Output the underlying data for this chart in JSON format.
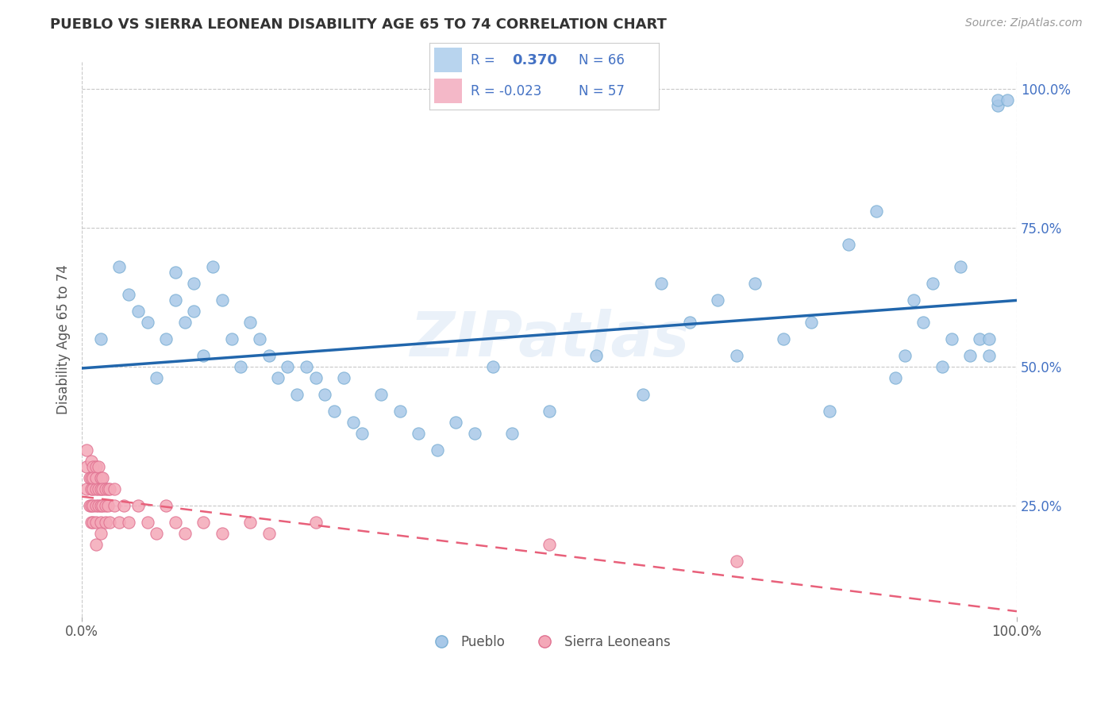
{
  "title": "PUEBLO VS SIERRA LEONEAN DISABILITY AGE 65 TO 74 CORRELATION CHART",
  "source": "Source: ZipAtlas.com",
  "ylabel": "Disability Age 65 to 74",
  "xlim": [
    0.0,
    1.0
  ],
  "ylim": [
    0.05,
    1.05
  ],
  "xtick_positions": [
    0.0,
    1.0
  ],
  "xtick_labels": [
    "0.0%",
    "100.0%"
  ],
  "ytick_positions": [
    0.25,
    0.5,
    0.75,
    1.0
  ],
  "ytick_labels": [
    "25.0%",
    "50.0%",
    "75.0%",
    "100.0%"
  ],
  "pueblo_color": "#a8c8e8",
  "pueblo_edge_color": "#7bafd4",
  "sierra_color": "#f4a8b8",
  "sierra_edge_color": "#e07090",
  "pueblo_line_color": "#2166ac",
  "sierra_line_color": "#e8607a",
  "R_pueblo": 0.37,
  "N_pueblo": 66,
  "R_sierra": -0.023,
  "N_sierra": 57,
  "watermark": "ZIPatlas",
  "background_color": "#ffffff",
  "grid_color": "#c8c8c8",
  "legend_box_color": "#b8d4ee",
  "legend_box_color2": "#f4b8c8",
  "pueblo_x": [
    0.02,
    0.04,
    0.05,
    0.06,
    0.07,
    0.08,
    0.09,
    0.1,
    0.1,
    0.11,
    0.12,
    0.12,
    0.13,
    0.14,
    0.15,
    0.16,
    0.17,
    0.18,
    0.19,
    0.2,
    0.21,
    0.22,
    0.23,
    0.24,
    0.25,
    0.26,
    0.27,
    0.28,
    0.29,
    0.3,
    0.32,
    0.34,
    0.36,
    0.38,
    0.4,
    0.42,
    0.44,
    0.46,
    0.5,
    0.55,
    0.6,
    0.62,
    0.65,
    0.68,
    0.7,
    0.72,
    0.75,
    0.78,
    0.8,
    0.82,
    0.85,
    0.87,
    0.88,
    0.89,
    0.9,
    0.91,
    0.92,
    0.93,
    0.94,
    0.95,
    0.96,
    0.97,
    0.97,
    0.98,
    0.98,
    0.99
  ],
  "pueblo_y": [
    0.55,
    0.68,
    0.63,
    0.6,
    0.58,
    0.48,
    0.55,
    0.62,
    0.67,
    0.58,
    0.65,
    0.6,
    0.52,
    0.68,
    0.62,
    0.55,
    0.5,
    0.58,
    0.55,
    0.52,
    0.48,
    0.5,
    0.45,
    0.5,
    0.48,
    0.45,
    0.42,
    0.48,
    0.4,
    0.38,
    0.45,
    0.42,
    0.38,
    0.35,
    0.4,
    0.38,
    0.5,
    0.38,
    0.42,
    0.52,
    0.45,
    0.65,
    0.58,
    0.62,
    0.52,
    0.65,
    0.55,
    0.58,
    0.42,
    0.72,
    0.78,
    0.48,
    0.52,
    0.62,
    0.58,
    0.65,
    0.5,
    0.55,
    0.68,
    0.52,
    0.55,
    0.52,
    0.55,
    0.97,
    0.98,
    0.98
  ],
  "sierra_x": [
    0.005,
    0.005,
    0.005,
    0.008,
    0.008,
    0.01,
    0.01,
    0.01,
    0.01,
    0.01,
    0.012,
    0.012,
    0.012,
    0.012,
    0.012,
    0.015,
    0.015,
    0.015,
    0.015,
    0.015,
    0.015,
    0.018,
    0.018,
    0.018,
    0.02,
    0.02,
    0.02,
    0.02,
    0.02,
    0.022,
    0.022,
    0.022,
    0.025,
    0.025,
    0.025,
    0.028,
    0.028,
    0.03,
    0.03,
    0.035,
    0.035,
    0.04,
    0.045,
    0.05,
    0.06,
    0.07,
    0.08,
    0.09,
    0.1,
    0.11,
    0.13,
    0.15,
    0.18,
    0.2,
    0.25,
    0.5,
    0.7
  ],
  "sierra_y": [
    0.32,
    0.28,
    0.35,
    0.3,
    0.25,
    0.33,
    0.28,
    0.3,
    0.25,
    0.22,
    0.32,
    0.28,
    0.25,
    0.3,
    0.22,
    0.32,
    0.28,
    0.3,
    0.25,
    0.22,
    0.18,
    0.32,
    0.28,
    0.25,
    0.3,
    0.28,
    0.25,
    0.22,
    0.2,
    0.3,
    0.28,
    0.25,
    0.28,
    0.25,
    0.22,
    0.28,
    0.25,
    0.28,
    0.22,
    0.28,
    0.25,
    0.22,
    0.25,
    0.22,
    0.25,
    0.22,
    0.2,
    0.25,
    0.22,
    0.2,
    0.22,
    0.2,
    0.22,
    0.2,
    0.22,
    0.18,
    0.15
  ]
}
